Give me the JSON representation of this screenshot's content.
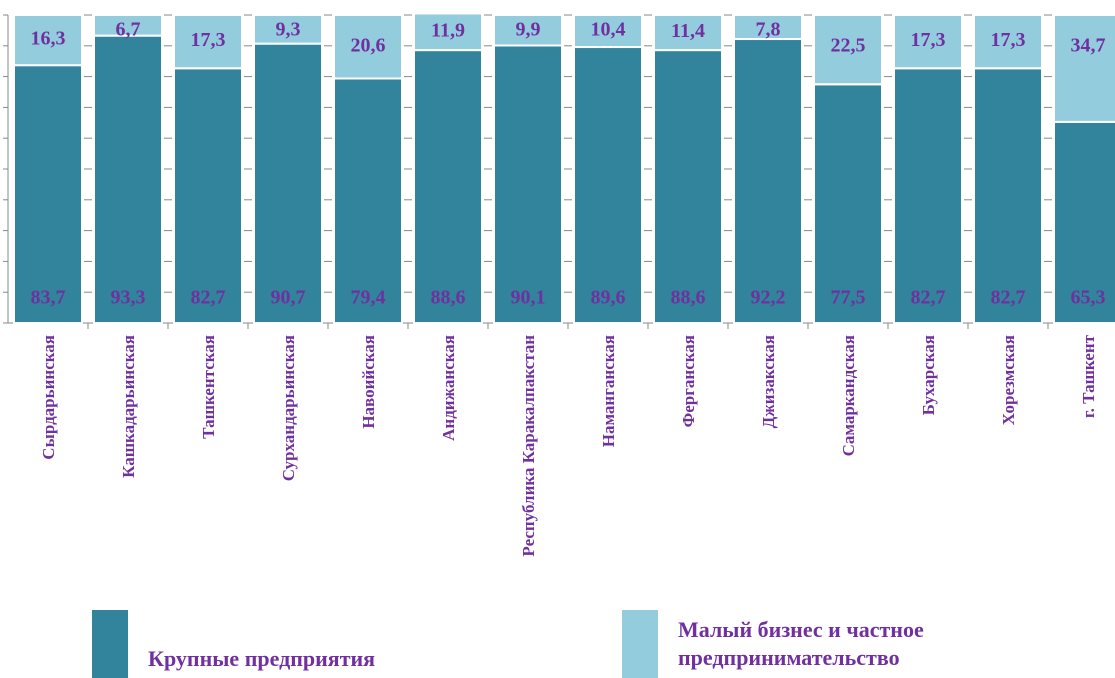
{
  "chart_data": {
    "type": "stacked_bar",
    "categories": [
      "Сырдарьинская",
      "Кашкадарьинская",
      "Ташкентская",
      "Сурхандарьинская",
      "Навоийская",
      "Андижанская",
      "Республика Каракалпакстан",
      "Наманганская",
      "Ферганская",
      "Джизакская",
      "Самаркандская",
      "Бухарская",
      "Хорезмская",
      "г. Ташкент"
    ],
    "series": [
      {
        "name": "Крупные предприятия",
        "color": "#31849b",
        "values": [
          83.7,
          93.3,
          82.7,
          90.7,
          79.4,
          88.6,
          90.1,
          89.6,
          88.6,
          92.2,
          77.5,
          82.7,
          82.7,
          65.3
        ],
        "value_labels": [
          "83,7",
          "93,3",
          "82,7",
          "90,7",
          "79,4",
          "88,6",
          "90,1",
          "89,6",
          "88,6",
          "92,2",
          "77,5",
          "82,7",
          "82,7",
          "65,3"
        ]
      },
      {
        "name": "Малый бизнес и частное предпринимательство",
        "color": "#93cddd",
        "values": [
          16.3,
          6.7,
          17.3,
          9.3,
          20.6,
          11.9,
          9.9,
          10.4,
          11.4,
          7.8,
          22.5,
          17.3,
          17.3,
          34.7
        ],
        "value_labels": [
          "16,3",
          "6,7",
          "17,3",
          "9,3",
          "20,6",
          "11,9",
          "9,9",
          "10,4",
          "11,4",
          "7,8",
          "22,5",
          "17,3",
          "17,3",
          "34,7"
        ]
      }
    ],
    "ylim": [
      0,
      100
    ],
    "yticks": [
      0,
      10,
      20,
      30,
      40,
      50,
      60,
      70,
      80,
      90,
      100
    ]
  }
}
